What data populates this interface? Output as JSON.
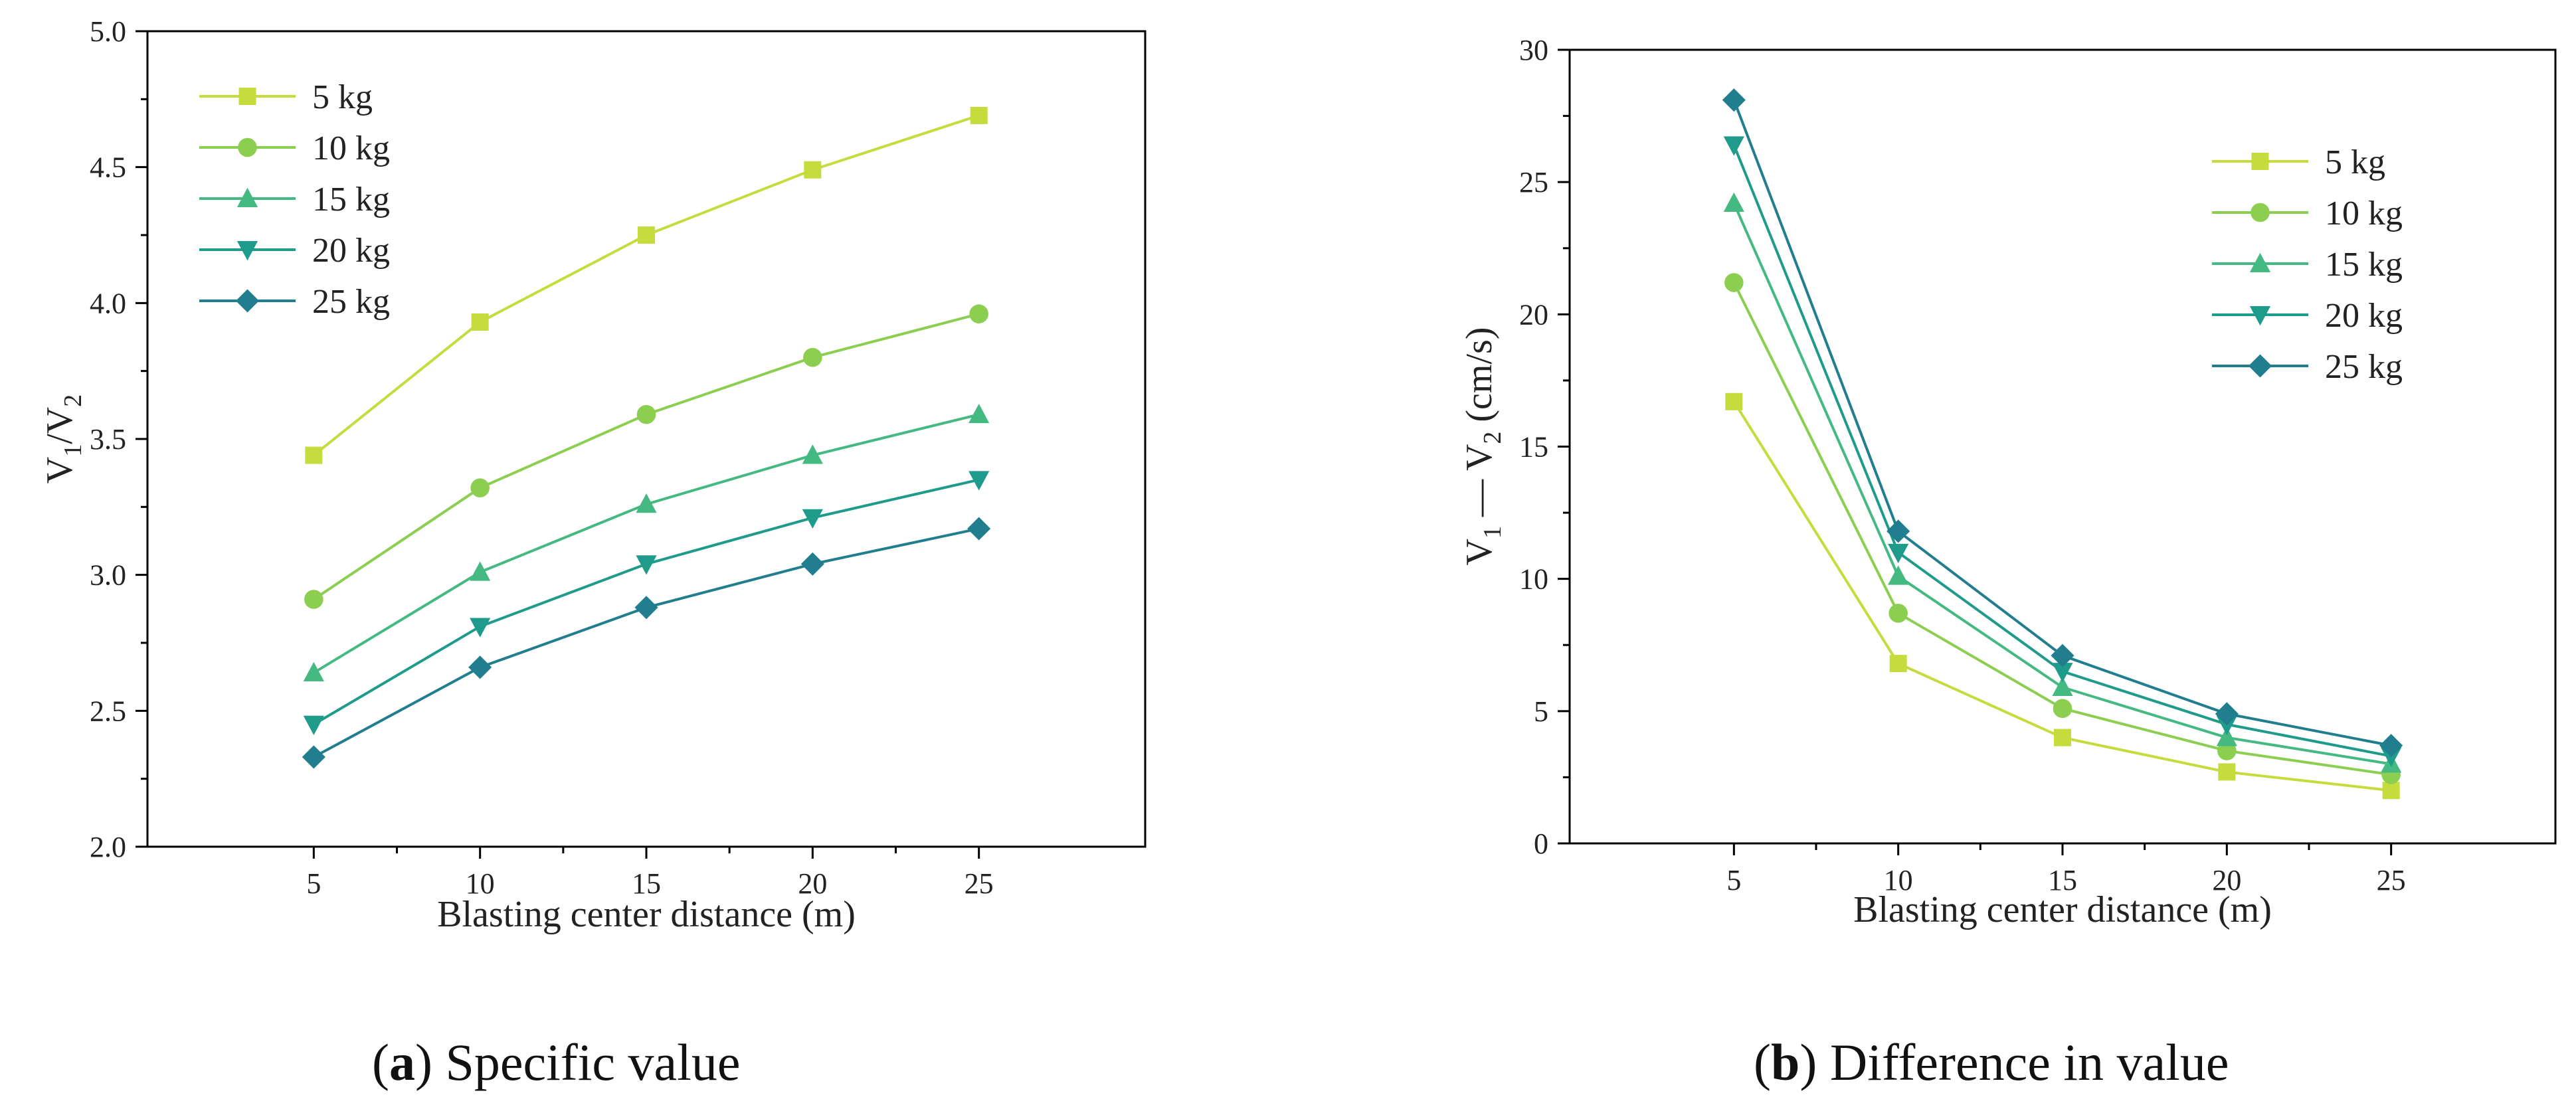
{
  "chart_data": [
    {
      "type": "line",
      "caption_letter": "a",
      "caption_text": "Specific value",
      "xlabel": "Blasting center distance (m)",
      "ylabel": "V1/V2",
      "x": [
        5,
        10,
        15,
        20,
        25
      ],
      "xlim": [
        0,
        30
      ],
      "xticks": [
        5,
        10,
        15,
        20,
        25
      ],
      "ylim": [
        2.0,
        5.0
      ],
      "yticks": [
        "2.0",
        "2.5",
        "3.0",
        "3.5",
        "4.0",
        "4.5",
        "5.0"
      ],
      "legend_position": "top-left",
      "series": [
        {
          "name": "5 kg",
          "marker": "square",
          "color": "#c6dc3c",
          "values": [
            3.44,
            3.93,
            4.25,
            4.49,
            4.69
          ]
        },
        {
          "name": "10 kg",
          "marker": "circle",
          "color": "#8ccf50",
          "values": [
            2.91,
            3.32,
            3.59,
            3.8,
            3.96
          ]
        },
        {
          "name": "15 kg",
          "marker": "triangle-up",
          "color": "#45b982",
          "values": [
            2.64,
            3.01,
            3.26,
            3.44,
            3.59
          ]
        },
        {
          "name": "20 kg",
          "marker": "triangle-down",
          "color": "#1f9b8c",
          "values": [
            2.45,
            2.81,
            3.04,
            3.21,
            3.35
          ]
        },
        {
          "name": "25 kg",
          "marker": "diamond",
          "color": "#217e8e",
          "values": [
            2.33,
            2.66,
            2.88,
            3.04,
            3.17
          ]
        }
      ]
    },
    {
      "type": "line",
      "caption_letter": "b",
      "caption_text": "Difference in value",
      "xlabel": "Blasting center distance (m)",
      "ylabel": "V1 — V2 (cm/s)",
      "x": [
        5,
        10,
        15,
        20,
        25
      ],
      "xlim": [
        0,
        30
      ],
      "xticks": [
        5,
        10,
        15,
        20,
        25
      ],
      "ylim": [
        0,
        30
      ],
      "yticks": [
        "0",
        "5",
        "10",
        "15",
        "20",
        "25",
        "30"
      ],
      "legend_position": "top-right",
      "series": [
        {
          "name": "5 kg",
          "marker": "square",
          "color": "#c6dc3c",
          "values": [
            16.7,
            6.8,
            4.0,
            2.7,
            2.0
          ]
        },
        {
          "name": "10 kg",
          "marker": "circle",
          "color": "#8ccf50",
          "values": [
            21.2,
            8.7,
            5.1,
            3.5,
            2.6
          ]
        },
        {
          "name": "15 kg",
          "marker": "triangle-up",
          "color": "#45b982",
          "values": [
            24.2,
            10.1,
            5.9,
            4.0,
            3.0
          ]
        },
        {
          "name": "20 kg",
          "marker": "triangle-down",
          "color": "#1f9b8c",
          "values": [
            26.4,
            11.0,
            6.5,
            4.5,
            3.3
          ]
        },
        {
          "name": "25 kg",
          "marker": "diamond",
          "color": "#217e8e",
          "values": [
            28.1,
            11.8,
            7.1,
            4.9,
            3.7
          ]
        }
      ]
    }
  ]
}
